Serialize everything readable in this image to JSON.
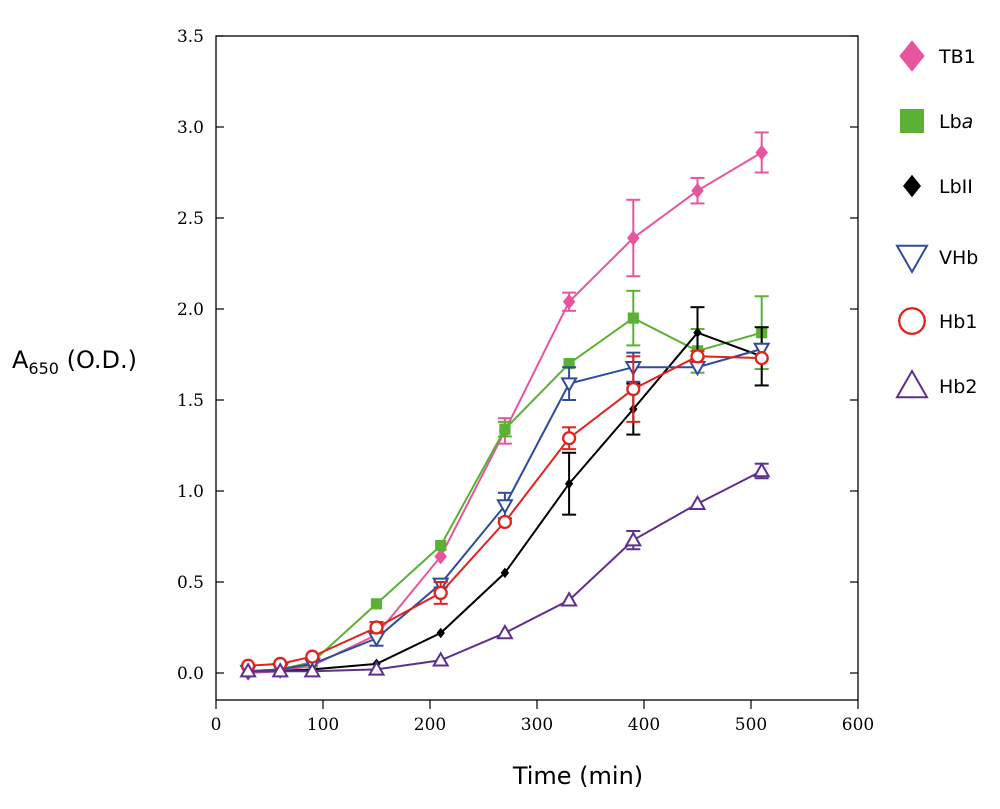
{
  "chart_data": {
    "type": "line",
    "xlabel": "Time (min)",
    "ylabel": "A650 (O.D.)",
    "ylabel_main": "A",
    "ylabel_sub": "650",
    "ylabel_rest": " (O.D.)",
    "xlim": [
      0,
      600
    ],
    "ylim": [
      0,
      3.5
    ],
    "xticks": [
      0,
      100,
      200,
      300,
      400,
      500,
      600
    ],
    "yticks": [
      0.0,
      0.5,
      1.0,
      1.5,
      2.0,
      2.5,
      3.0,
      3.5
    ],
    "ytick_labels": [
      "0.0",
      "0.5",
      "1.0",
      "1.5",
      "2.0",
      "2.5",
      "3.0",
      "3.5"
    ],
    "grid": false,
    "legend_position": "right",
    "series": [
      {
        "name": "TB1",
        "label_main": "TB1",
        "label_italic": "",
        "color": "#e8559e",
        "marker": "diamond-filled",
        "x": [
          30,
          60,
          90,
          150,
          210,
          270,
          330,
          390,
          450,
          510
        ],
        "y": [
          0.0,
          0.01,
          0.04,
          0.21,
          0.64,
          1.33,
          2.04,
          2.39,
          2.65,
          2.86
        ],
        "err": [
          0,
          0,
          0,
          0,
          0,
          0.07,
          0.05,
          0.21,
          0.07,
          0.11
        ]
      },
      {
        "name": "Lba",
        "label_main": "Lb",
        "label_italic": "a",
        "color": "#5ab133",
        "marker": "square-filled",
        "x": [
          30,
          60,
          90,
          150,
          210,
          270,
          330,
          390,
          450,
          510
        ],
        "y": [
          0.01,
          0.02,
          0.06,
          0.38,
          0.7,
          1.34,
          1.7,
          1.95,
          1.77,
          1.87
        ],
        "err": [
          0,
          0,
          0,
          0,
          0,
          0.04,
          0,
          0.15,
          0.12,
          0.2
        ]
      },
      {
        "name": "LbII",
        "label_main": "LbII",
        "label_italic": "",
        "color": "#000000",
        "marker": "diamond-small",
        "x": [
          30,
          60,
          90,
          150,
          210,
          270,
          330,
          390,
          450,
          510
        ],
        "y": [
          0.01,
          0.01,
          0.02,
          0.05,
          0.22,
          0.55,
          1.04,
          1.45,
          1.87,
          1.74
        ],
        "err": [
          0,
          0,
          0,
          0,
          0,
          0,
          0.17,
          0.14,
          0.14,
          0.16
        ]
      },
      {
        "name": "VHb",
        "label_main": "VHb",
        "label_italic": "",
        "color": "#2f4c9c",
        "marker": "triangle-down-open",
        "x": [
          30,
          60,
          90,
          150,
          210,
          270,
          330,
          390,
          450,
          510
        ],
        "y": [
          0.01,
          0.02,
          0.05,
          0.19,
          0.49,
          0.92,
          1.59,
          1.68,
          1.68,
          1.78
        ],
        "err": [
          0,
          0,
          0,
          0.04,
          0.02,
          0.07,
          0.09,
          0.08,
          0,
          0
        ]
      },
      {
        "name": "Hb1",
        "label_main": "Hb1",
        "label_italic": "",
        "color": "#e0231b",
        "marker": "circle-open",
        "x": [
          30,
          60,
          90,
          150,
          210,
          270,
          330,
          390,
          450,
          510
        ],
        "y": [
          0.04,
          0.05,
          0.09,
          0.25,
          0.44,
          0.83,
          1.29,
          1.56,
          1.74,
          1.73
        ],
        "err": [
          0,
          0,
          0,
          0.03,
          0.06,
          0,
          0.06,
          0.18,
          0.03,
          0
        ]
      },
      {
        "name": "Hb2",
        "label_main": "Hb2",
        "label_italic": "",
        "color": "#5f2e8e",
        "marker": "triangle-up-open",
        "x": [
          30,
          60,
          90,
          150,
          210,
          270,
          330,
          390,
          450,
          510
        ],
        "y": [
          0.01,
          0.01,
          0.01,
          0.02,
          0.07,
          0.22,
          0.4,
          0.73,
          0.93,
          1.11
        ],
        "err": [
          0,
          0,
          0,
          0,
          0,
          0,
          0,
          0.05,
          0,
          0.04
        ]
      }
    ]
  }
}
